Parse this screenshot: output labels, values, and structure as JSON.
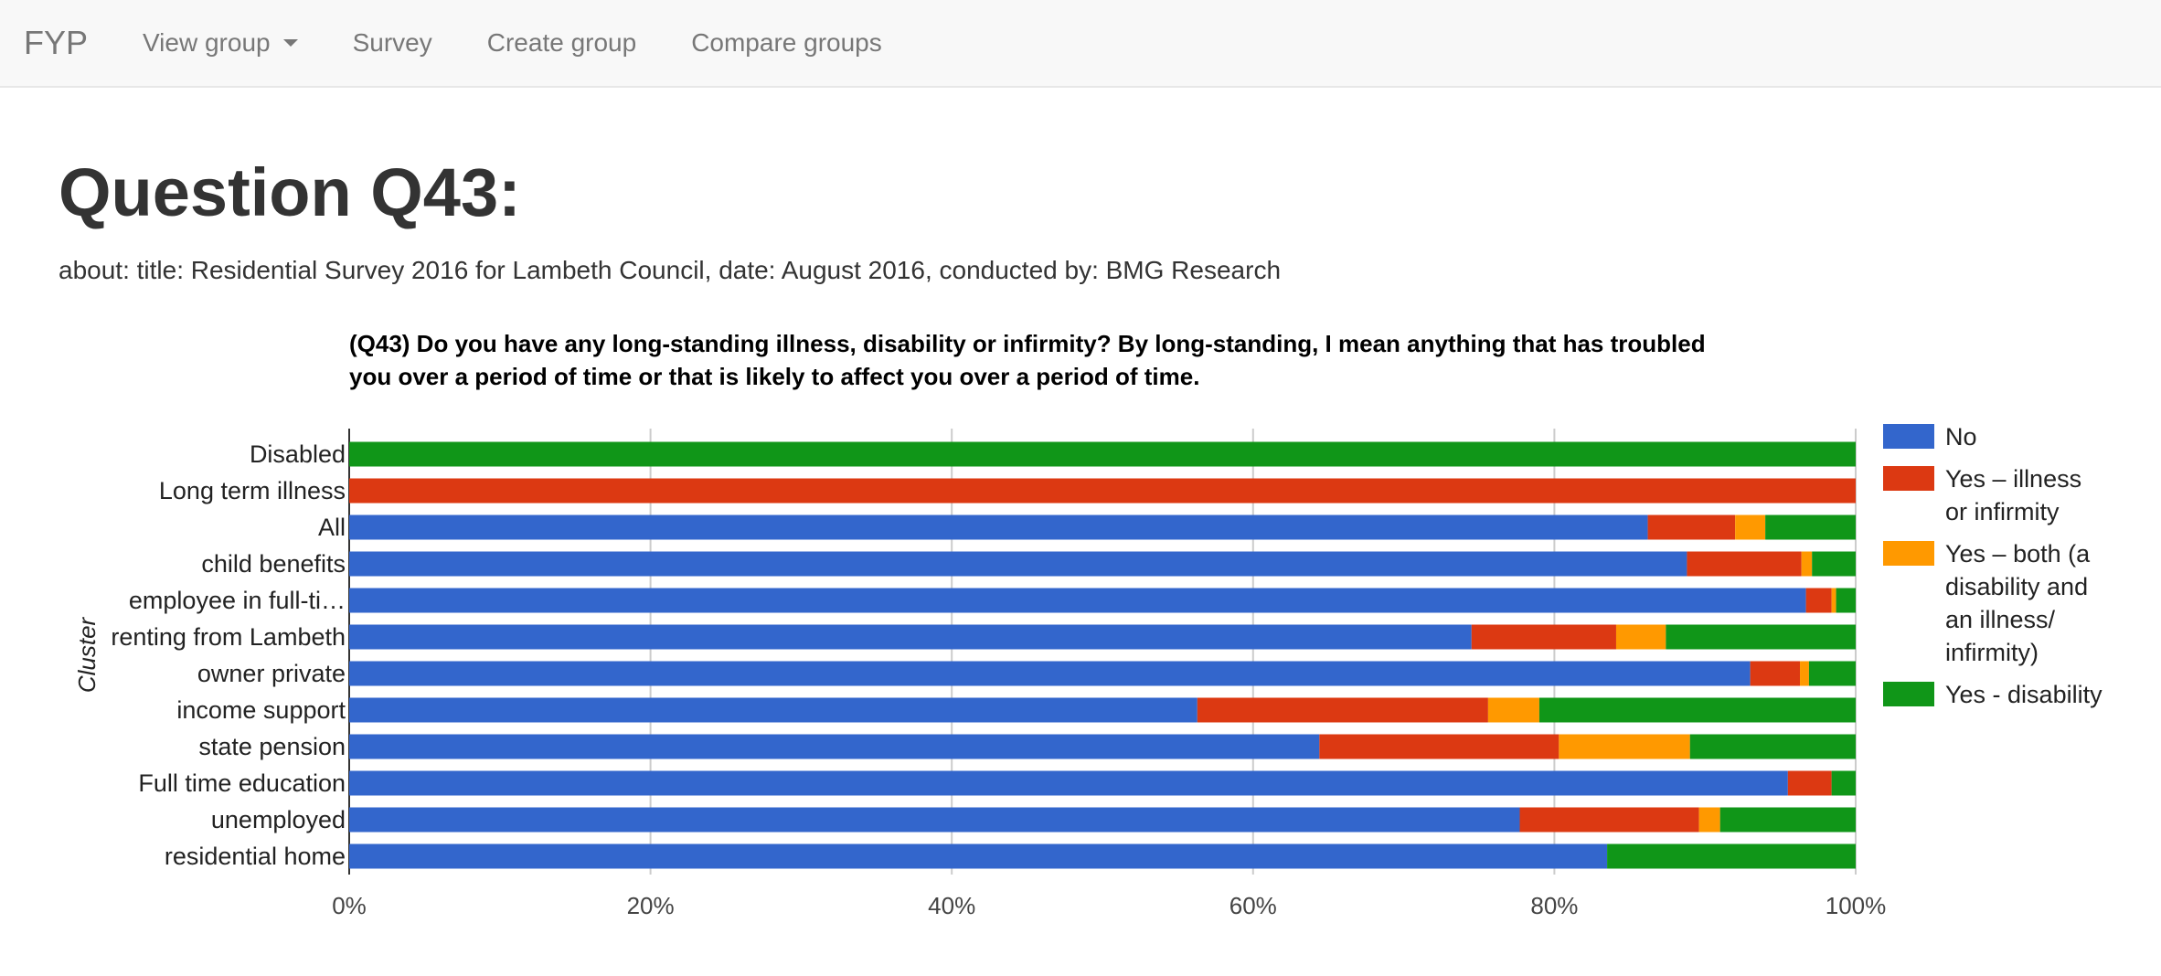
{
  "navbar": {
    "brand": "FYP",
    "items": [
      "View group",
      "Survey",
      "Create group",
      "Compare groups"
    ]
  },
  "page": {
    "title": "Question Q43:",
    "about": "about: title: Residential Survey 2016 for Lambeth Council, date: August 2016, conducted by: BMG Research"
  },
  "chart_data": {
    "type": "bar",
    "orientation": "horizontal",
    "stacked": "percent",
    "title": [
      "(Q43) Do you have any long-standing illness, disability or infirmity? By long-standing, I mean anything that has troubled",
      "you over a period of time or that is likely to affect you over a period of time."
    ],
    "ylabel": "Cluster",
    "xlabel": "",
    "xlim": [
      0,
      100
    ],
    "xticks": [
      "0%",
      "20%",
      "40%",
      "60%",
      "80%",
      "100%"
    ],
    "grid": true,
    "legend_position": "right",
    "categories": [
      "Disabled",
      "Long term illness",
      "All",
      "child benefits",
      "employee in full-ti…",
      "renting from Lambeth",
      "owner private",
      "income support",
      "state pension",
      "Full time education",
      "unemployed",
      "residential home"
    ],
    "series": [
      {
        "name": "No",
        "color": "#3366cc",
        "legend_lines": [
          "No"
        ],
        "values": [
          0,
          0,
          86.2,
          88.8,
          96.7,
          74.5,
          93.0,
          56.3,
          64.4,
          95.5,
          77.7,
          83.5
        ]
      },
      {
        "name": "Yes – illness or infirmity",
        "color": "#dc3912",
        "legend_lines": [
          "Yes – illness",
          "or infirmity"
        ],
        "values": [
          0,
          100,
          5.8,
          7.6,
          1.7,
          9.6,
          3.3,
          19.3,
          15.9,
          2.9,
          11.9,
          0
        ]
      },
      {
        "name": "Yes – both (a disability and an illness/ infirmity)",
        "color": "#ff9900",
        "legend_lines": [
          "Yes – both (a",
          "disability and",
          "an illness/",
          "infirmity)"
        ],
        "values": [
          0,
          0,
          2.0,
          0.7,
          0.3,
          3.3,
          0.6,
          3.4,
          8.7,
          0,
          1.4,
          0
        ]
      },
      {
        "name": "Yes - disability",
        "color": "#109618",
        "legend_lines": [
          "Yes - disability"
        ],
        "values": [
          100,
          0,
          6.0,
          2.9,
          1.3,
          12.6,
          3.1,
          21.0,
          11.0,
          1.6,
          9.0,
          16.5
        ]
      }
    ]
  }
}
